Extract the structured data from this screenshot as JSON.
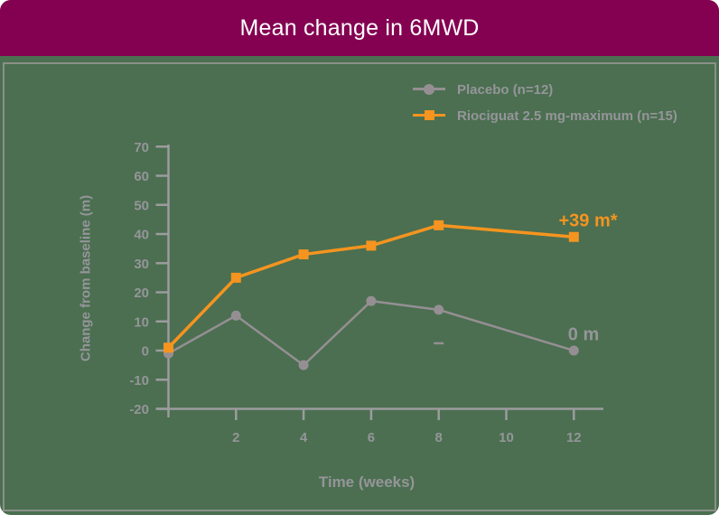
{
  "header": {
    "title": "Mean change in 6MWD"
  },
  "colors": {
    "header_bg": "#840051",
    "panel_bg": "#4b6f50",
    "panel_border": "#8b9089",
    "axis": "#9c9c9e",
    "gray_text": "#95959a",
    "placebo": "#958f93",
    "riociguat": "#F5941F"
  },
  "chart_data": {
    "type": "line",
    "title": "Mean change in 6MWD",
    "xlabel": "Time (weeks)",
    "ylabel": "Change from baseline (m)",
    "x": [
      0,
      2,
      4,
      6,
      8,
      12
    ],
    "xticks": [
      2,
      4,
      6,
      8,
      10,
      12
    ],
    "ylim": [
      -20,
      70
    ],
    "ytick_step": 10,
    "grid": false,
    "legend_position": "top-right",
    "series": [
      {
        "name": "Placebo (n=12)",
        "marker": "circle",
        "color": "#958f93",
        "line_width": 2.5,
        "values": [
          -1,
          12,
          -5,
          17,
          14,
          0
        ],
        "end_label": "0 m"
      },
      {
        "name": "Riociguat 2.5 mg-maximum (n=15)",
        "marker": "square",
        "color": "#F5941F",
        "line_width": 3.5,
        "values": [
          1,
          25,
          33,
          36,
          43,
          39
        ],
        "end_label": "+39 m*"
      }
    ],
    "extra_marks": [
      {
        "type": "dash",
        "x": 8,
        "y": 2.5,
        "series": "placebo"
      }
    ]
  }
}
